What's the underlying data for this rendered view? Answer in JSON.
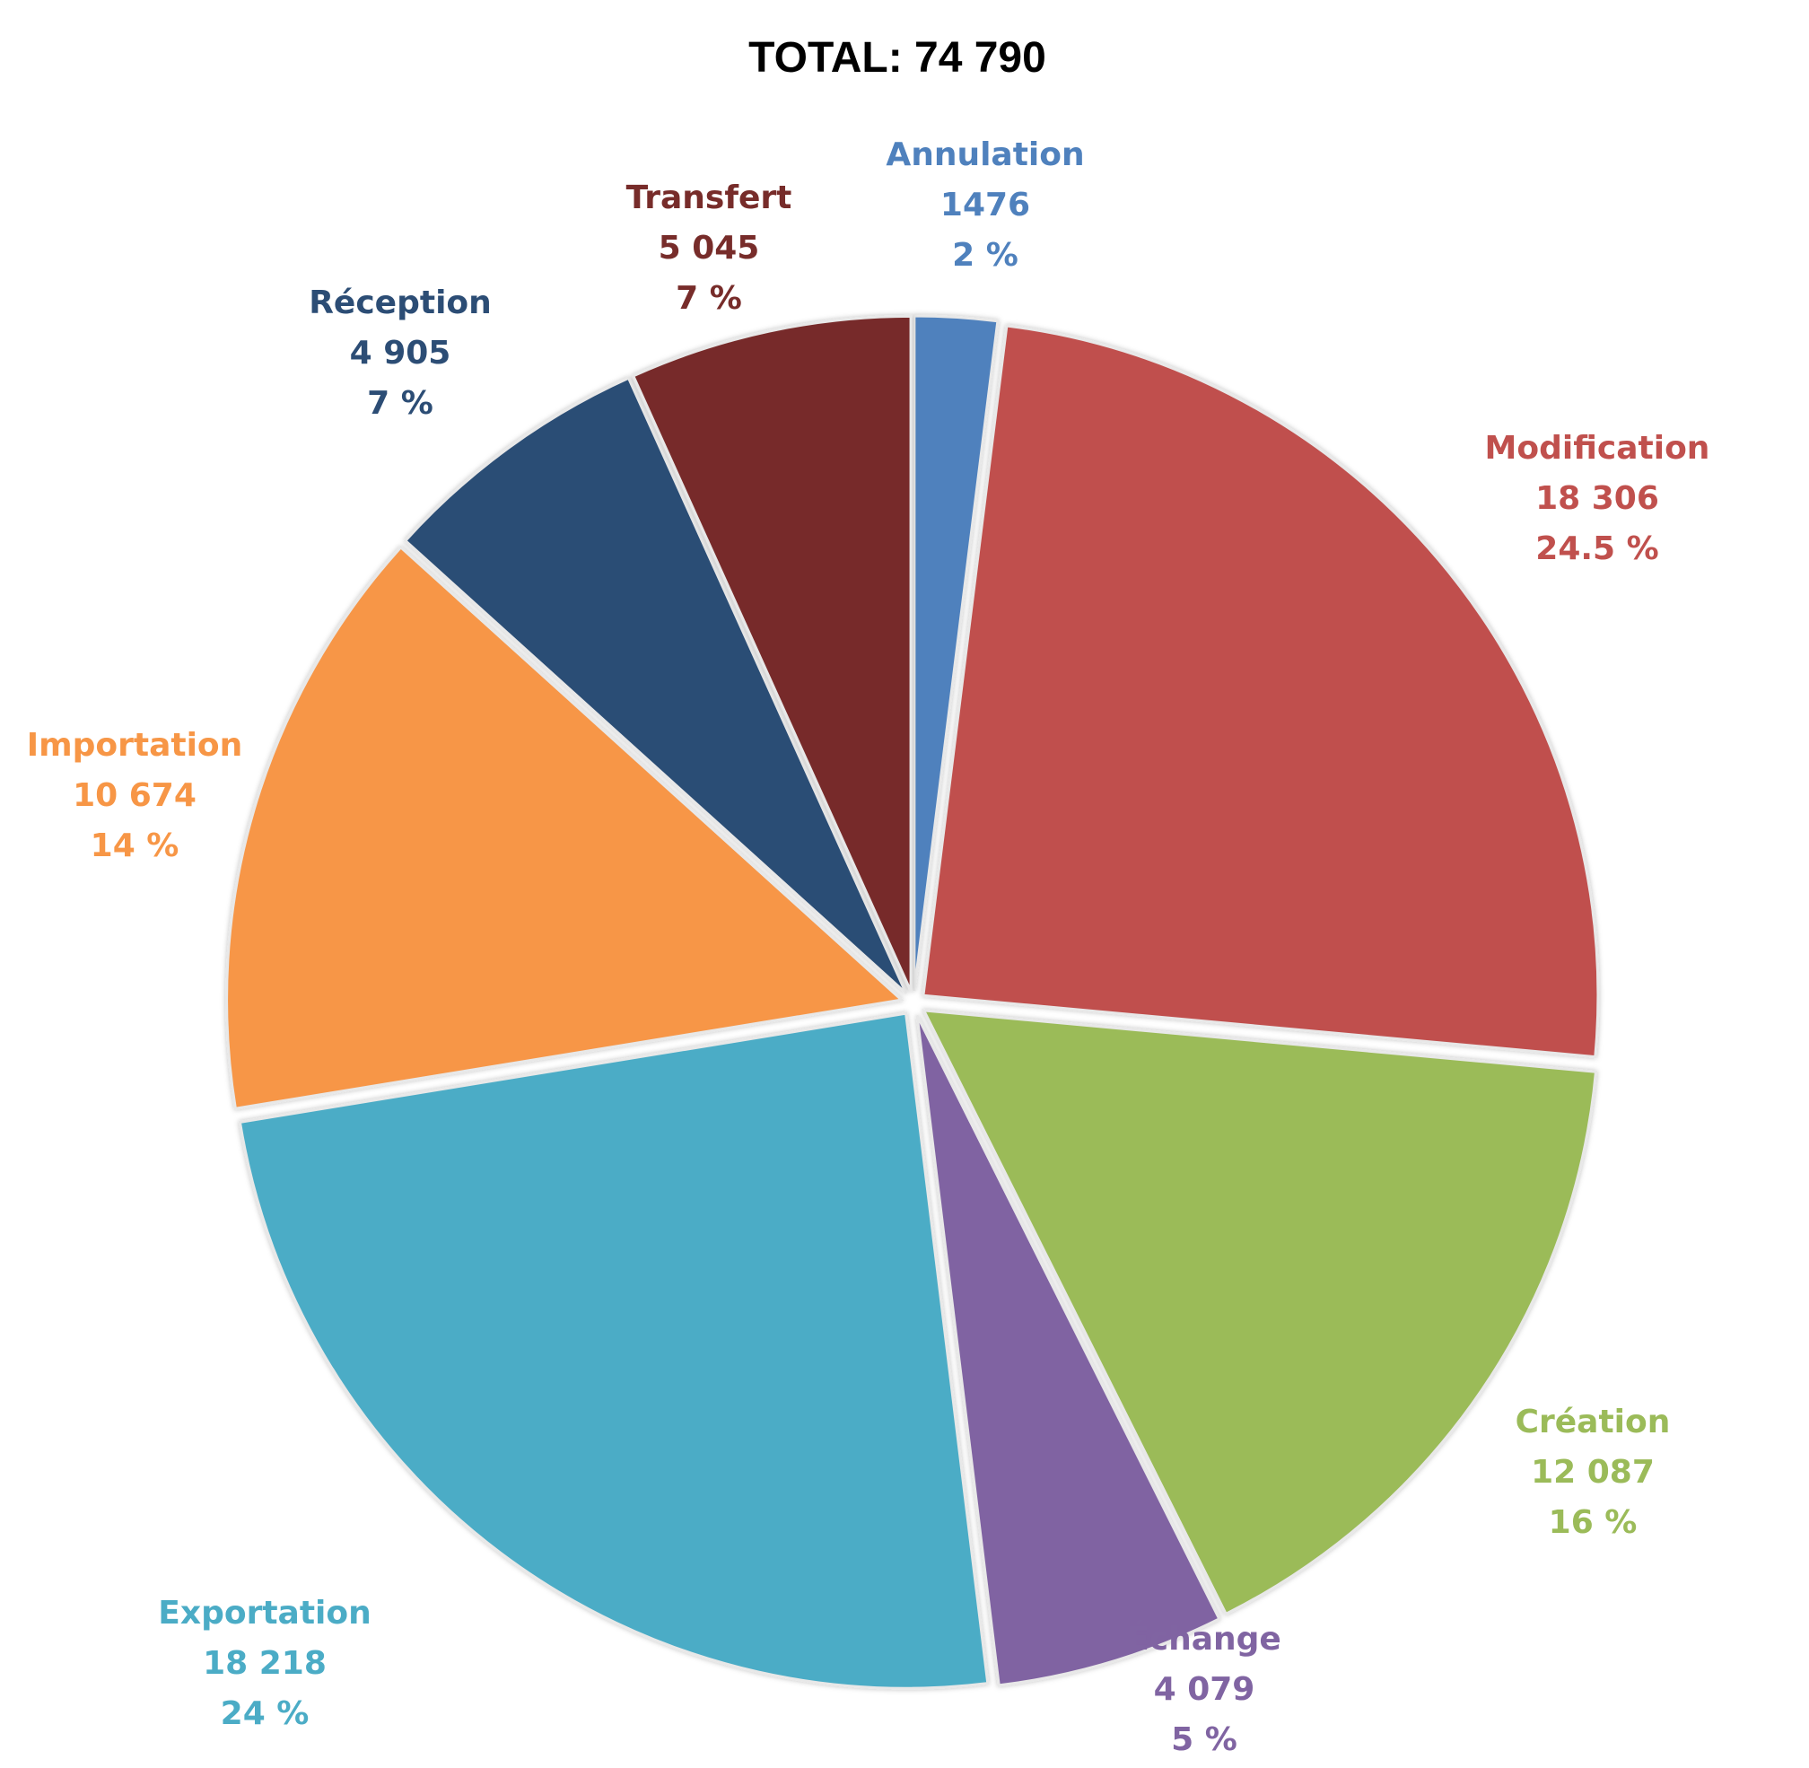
{
  "chart_data": {
    "type": "pie",
    "title": "TOTAL: 74 790",
    "start_angle_deg": 0,
    "direction": "clockwise",
    "slices": [
      {
        "name": "Annulation",
        "value": 1476,
        "value_label": "1476",
        "percent_label": "2 %",
        "color": "#4f81bd"
      },
      {
        "name": "Modification",
        "value": 18306,
        "value_label": "18 306",
        "percent_label": "24.5 %",
        "color": "#c0504d"
      },
      {
        "name": "Création",
        "value": 12087,
        "value_label": "12 087",
        "percent_label": "16 %",
        "color": "#9bbb59"
      },
      {
        "name": "Échange",
        "value": 4079,
        "value_label": "4 079",
        "percent_label": "5 %",
        "color": "#8064a2"
      },
      {
        "name": "Exportation",
        "value": 18218,
        "value_label": "18 218",
        "percent_label": "24 %",
        "color": "#4bacc6"
      },
      {
        "name": "Importation",
        "value": 10674,
        "value_label": "10 674",
        "percent_label": "14 %",
        "color": "#f79646"
      },
      {
        "name": "Réception",
        "value": 4905,
        "value_label": "4 905",
        "percent_label": "7 %",
        "color": "#2c4d75"
      },
      {
        "name": "Transfert",
        "value": 5045,
        "value_label": "5 045",
        "percent_label": "7 %",
        "color": "#772c2a"
      }
    ],
    "labels_outside": true,
    "legend": "none"
  }
}
